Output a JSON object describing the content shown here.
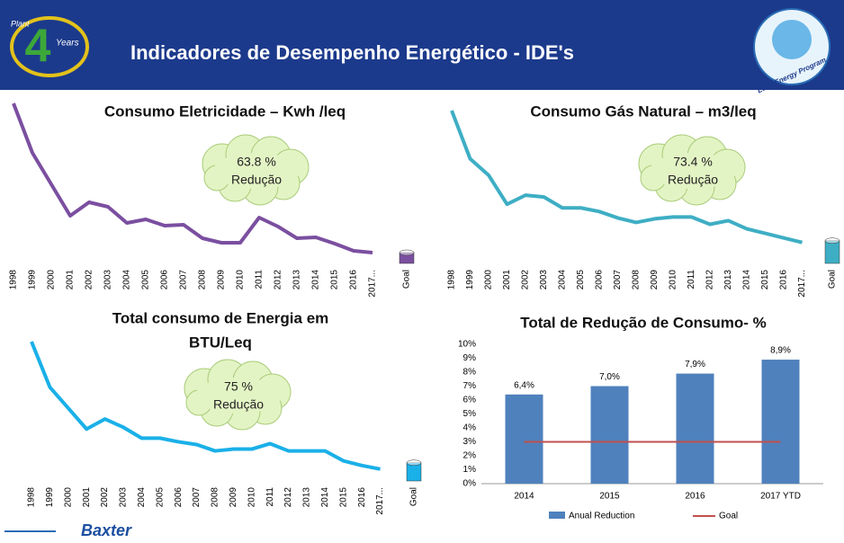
{
  "header": {
    "title": "Indicadores de Desempenho  Energético  - IDE's",
    "logo_left": {
      "number": "4",
      "texts": [
        "Plant",
        "Years"
      ]
    },
    "logo_right": "Lean Energy Program"
  },
  "footer": {
    "brand": "Baxter"
  },
  "chart_data": [
    {
      "type": "line",
      "title": [
        "Consumo Eletricidade – Kwh /leq"
      ],
      "categories": [
        "1998",
        "1999",
        "2000",
        "2001",
        "2002",
        "2003",
        "2004",
        "2005",
        "2006",
        "2007",
        "2008",
        "2009",
        "2010",
        "2011",
        "2012",
        "2013",
        "2014",
        "2015",
        "2016",
        "2017...",
        "Goal"
      ],
      "series": [
        {
          "color": "#7b4fa0",
          "values": [
            178,
            123,
            88,
            53,
            68,
            63,
            45,
            49,
            42,
            43,
            28,
            23,
            23,
            51,
            41,
            28,
            29,
            22,
            14,
            12,
            null
          ]
        }
      ],
      "goal": {
        "value": 12,
        "color": "#7b4fa0"
      },
      "annotation": [
        "63.8 %",
        "Redução"
      ]
    },
    {
      "type": "line",
      "title": [
        "Consumo Gás Natural – m3/leq"
      ],
      "categories": [
        "1998",
        "1999",
        "2000",
        "2001",
        "2002",
        "2003",
        "2004",
        "2005",
        "2006",
        "2007",
        "2008",
        "2009",
        "2010",
        "2011",
        "2012",
        "2013",
        "2014",
        "2015",
        "2016",
        "2017...",
        "Goal"
      ],
      "series": [
        {
          "color": "#3eaec4",
          "values": [
            168,
            115,
            97,
            65,
            75,
            73,
            61,
            61,
            57,
            50,
            45,
            49,
            51,
            51,
            43,
            47,
            38,
            33,
            28,
            23,
            null
          ]
        }
      ],
      "goal": {
        "value": 25,
        "color": "#3eaec4"
      },
      "annotation": [
        "73.4 %",
        "Redução"
      ]
    },
    {
      "type": "line",
      "title": [
        "Total consumo de Energia em",
        "BTU/Leq"
      ],
      "categories": [
        "1998",
        "1999",
        "2000",
        "2001",
        "2002",
        "2003",
        "2004",
        "2005",
        "2006",
        "2007",
        "2008",
        "2009",
        "2010",
        "2011",
        "2012",
        "2013",
        "2014",
        "2015",
        "2016",
        "2017...",
        "Goal"
      ],
      "series": [
        {
          "color": "#1ab0e8",
          "values": [
            153,
            103,
            80,
            57,
            68,
            59,
            47,
            47,
            43,
            40,
            33,
            35,
            35,
            41,
            33,
            33,
            33,
            22,
            17,
            13,
            null
          ]
        }
      ],
      "goal": {
        "value": 20,
        "color": "#1ab0e8"
      },
      "annotation": [
        "75 %",
        "Redução"
      ]
    },
    {
      "type": "bar",
      "title": [
        "Total de Redução de Consumo- %"
      ],
      "categories": [
        "2014",
        "2015",
        "2016",
        "2017 YTD"
      ],
      "series": [
        {
          "name": "Anual Reduction",
          "color": "#4f81bd",
          "values": [
            6.4,
            7.0,
            7.9,
            8.9
          ],
          "value_labels": [
            "6,4%",
            "7,0%",
            "7,9%",
            "8,9%"
          ]
        },
        {
          "name": "Goal",
          "color": "#c0504d",
          "values": [
            3,
            3,
            3,
            3
          ]
        }
      ],
      "ylim": [
        0,
        10
      ],
      "yticks": [
        {
          "value": 0,
          "label": "0%"
        },
        {
          "value": 1,
          "label": "1%"
        },
        {
          "value": 2,
          "label": "2%"
        },
        {
          "value": 3,
          "label": "3%"
        },
        {
          "value": 4,
          "label": "4%"
        },
        {
          "value": 5,
          "label": "5%"
        },
        {
          "value": 6,
          "label": "6%"
        },
        {
          "value": 7,
          "label": "7%"
        },
        {
          "value": 8,
          "label": "8%"
        },
        {
          "value": 9,
          "label": "9%"
        },
        {
          "value": 10,
          "label": "10%"
        }
      ]
    }
  ]
}
